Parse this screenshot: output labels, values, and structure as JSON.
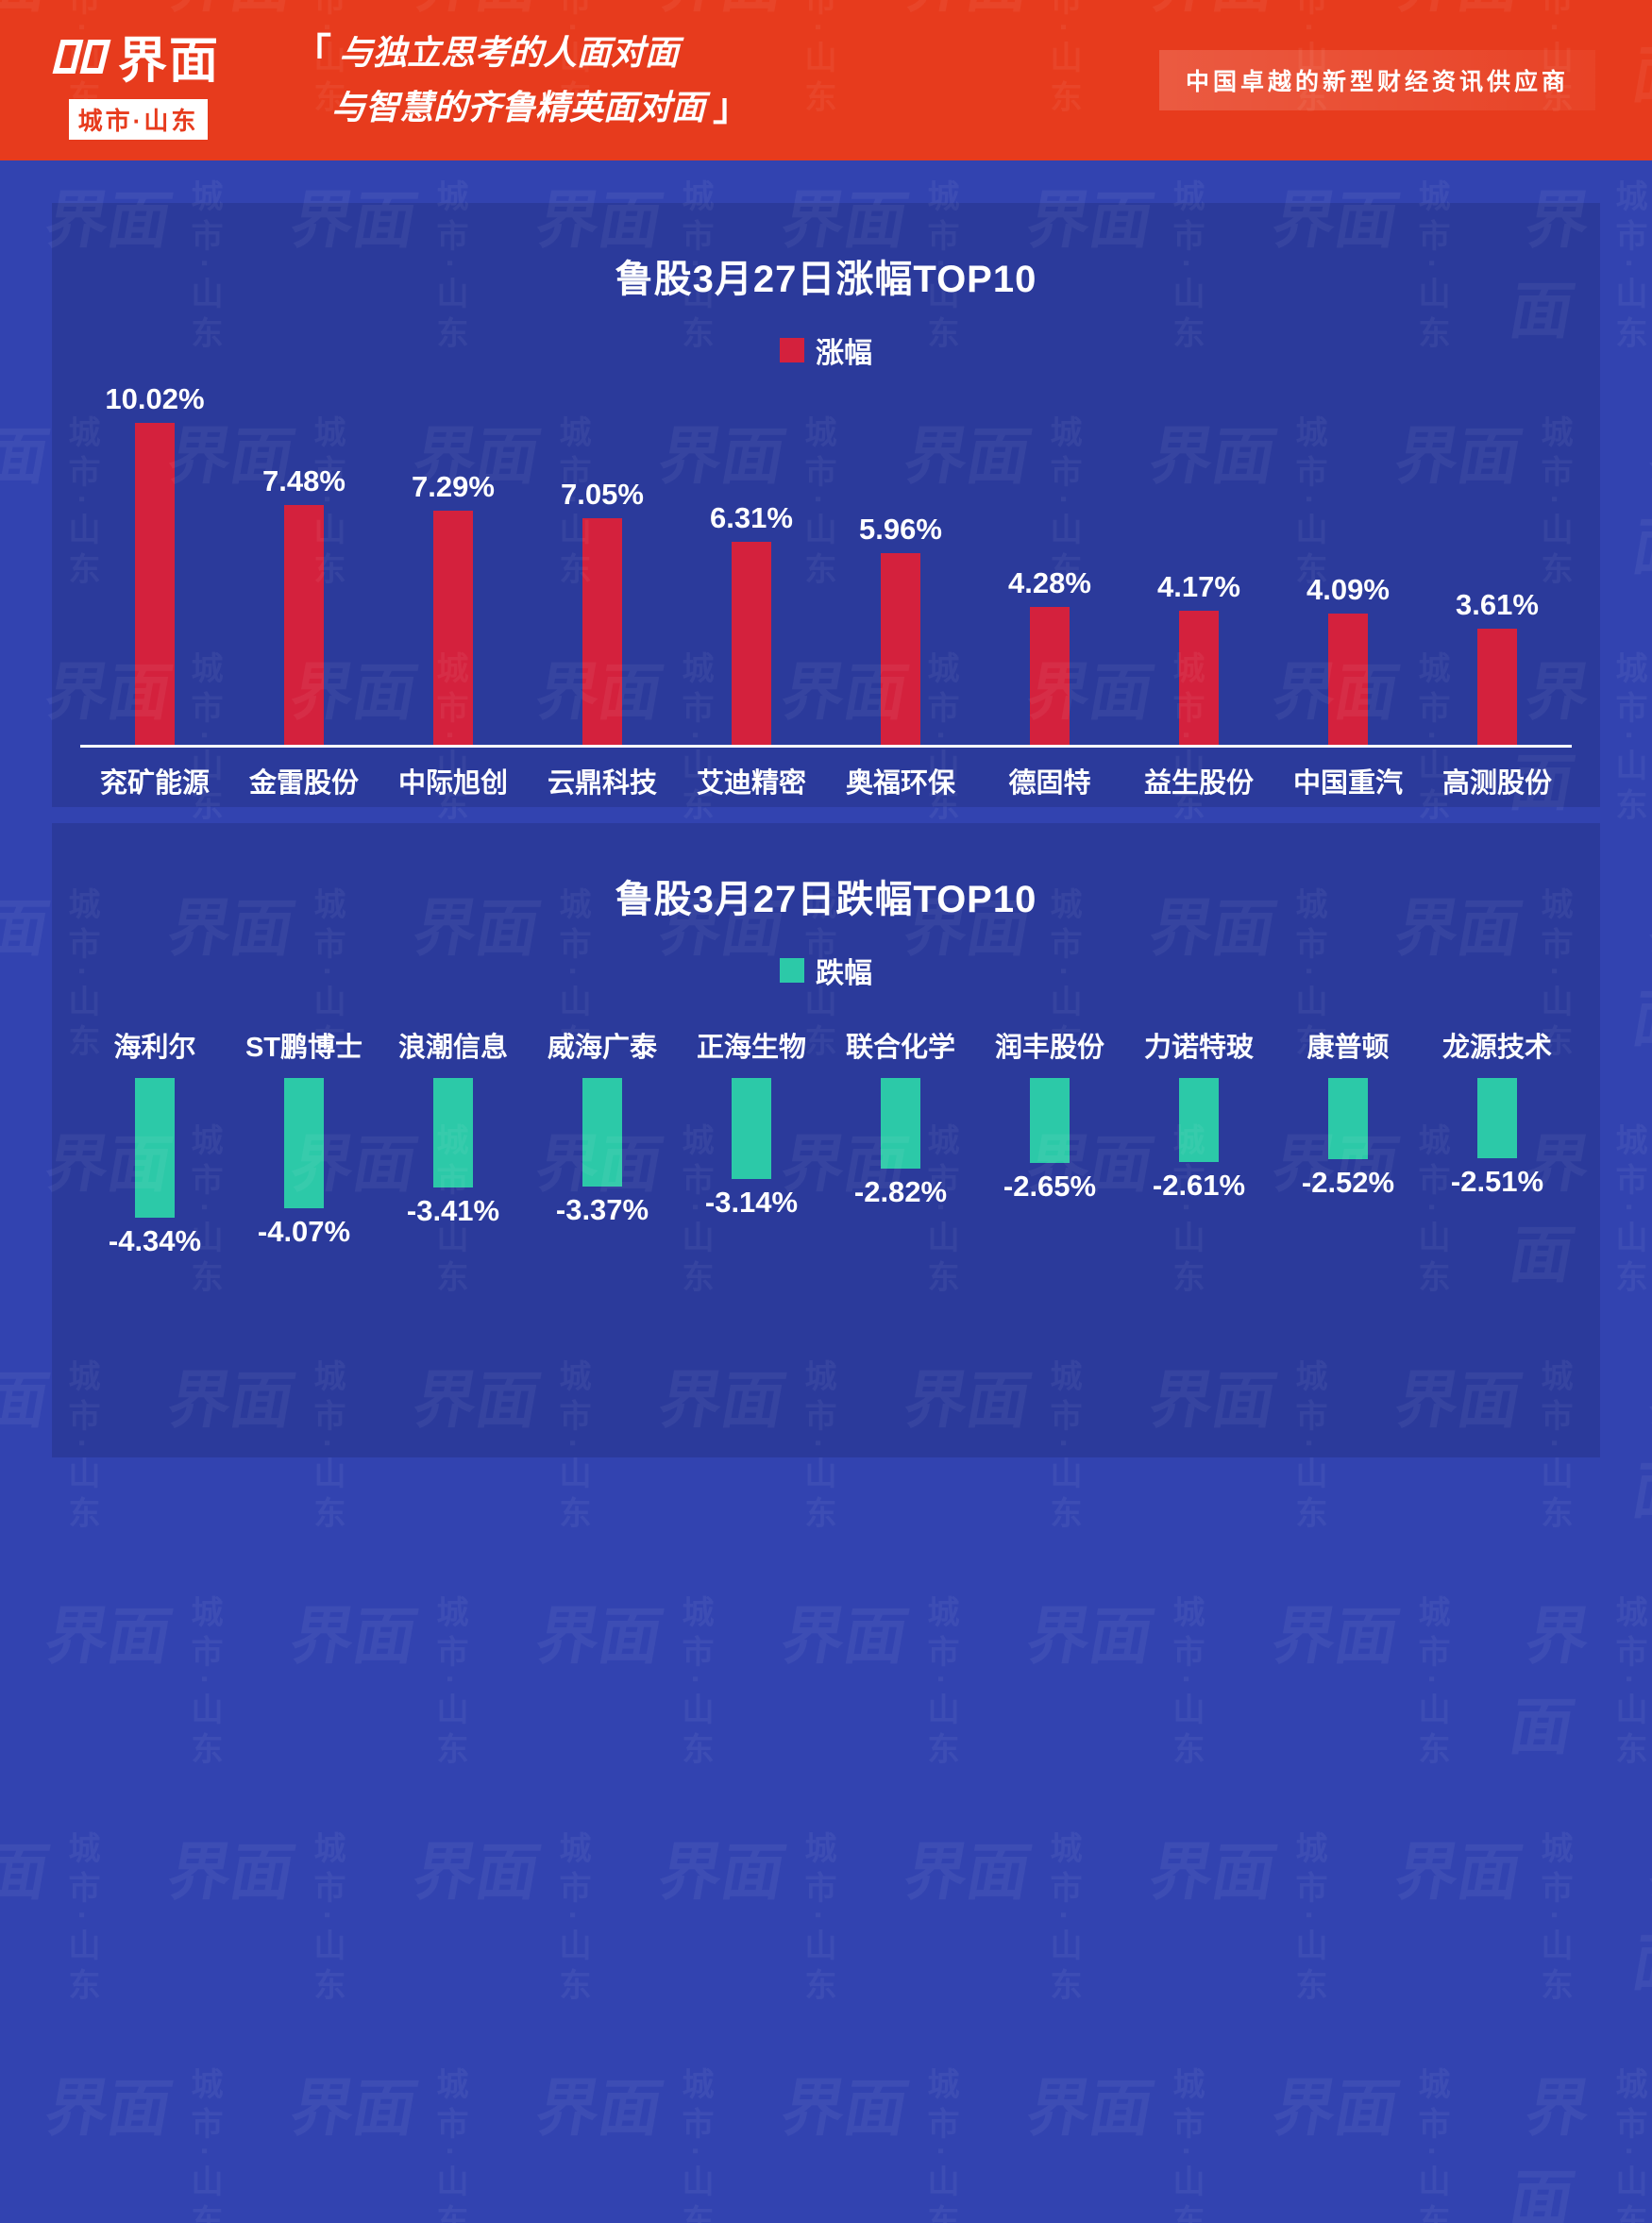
{
  "header": {
    "logo_main": "界面",
    "logo_sub": "城市·山东",
    "bracket_open": "「",
    "bracket_close": "」",
    "slogan_line1": "与独立思考的人面对面",
    "slogan_line2": "与智慧的齐鲁精英面对面",
    "tagline": "中国卓越的新型财经资讯供应商"
  },
  "colors": {
    "header_bg": "#e73b1d",
    "page_bg": "#3243b0",
    "panel_bg": "#2b3a9b",
    "up_bar": "#d4213d",
    "down_bar": "#2cc9a8"
  },
  "watermark": {
    "logo": "界面",
    "sub": "城市·山东"
  },
  "chart_data": [
    {
      "type": "bar",
      "title": "鲁股3月27日涨幅TOP10",
      "legend": "涨幅",
      "direction": "up",
      "bar_color": "#d4213d",
      "categories": [
        "兖矿能源",
        "金雷股份",
        "中际旭创",
        "云鼎科技",
        "艾迪精密",
        "奥福环保",
        "德固特",
        "益生股份",
        "中国重汽",
        "高测股份"
      ],
      "values": [
        10.02,
        7.48,
        7.29,
        7.05,
        6.31,
        5.96,
        4.28,
        4.17,
        4.09,
        3.61
      ],
      "labels": [
        "10.02%",
        "7.48%",
        "7.29%",
        "7.05%",
        "6.31%",
        "5.96%",
        "4.28%",
        "4.17%",
        "4.09%",
        "3.61%"
      ],
      "ylim": [
        0,
        10.02
      ],
      "grid": false,
      "legend_position": "top-center"
    },
    {
      "type": "bar",
      "title": "鲁股3月27日跌幅TOP10",
      "legend": "跌幅",
      "direction": "down",
      "bar_color": "#2cc9a8",
      "categories": [
        "海利尔",
        "ST鹏博士",
        "浪潮信息",
        "威海广泰",
        "正海生物",
        "联合化学",
        "润丰股份",
        "力诺特玻",
        "康普顿",
        "龙源技术"
      ],
      "values": [
        -4.34,
        -4.07,
        -3.41,
        -3.37,
        -3.14,
        -2.82,
        -2.65,
        -2.61,
        -2.52,
        -2.51
      ],
      "labels": [
        "-4.34%",
        "-4.07%",
        "-3.41%",
        "-3.37%",
        "-3.14%",
        "-2.82%",
        "-2.65%",
        "-2.61%",
        "-2.52%",
        "-2.51%"
      ],
      "ylim": [
        -4.34,
        0
      ],
      "grid": false,
      "legend_position": "top-center"
    }
  ]
}
